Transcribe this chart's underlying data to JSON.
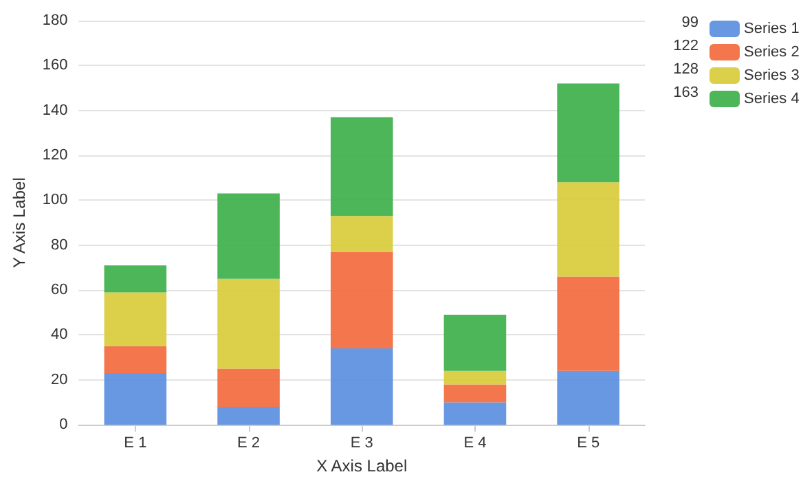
{
  "chart_data": {
    "type": "bar",
    "stacked": true,
    "xlabel": "X Axis Label",
    "ylabel": "Y Axis Label",
    "categories": [
      "E 1",
      "E 2",
      "E 3",
      "E 4",
      "E 5"
    ],
    "series": [
      {
        "name": "Series 1",
        "color": "#5b8fe0",
        "values": [
          23,
          8,
          34,
          10,
          24
        ]
      },
      {
        "name": "Series 2",
        "color": "#f26a3d",
        "values": [
          12,
          17,
          43,
          8,
          42
        ]
      },
      {
        "name": "Series 3",
        "color": "#d9cc3c",
        "values": [
          24,
          40,
          16,
          6,
          42
        ]
      },
      {
        "name": "Series 4",
        "color": "#3db04a",
        "values": [
          12,
          38,
          44,
          25,
          44
        ]
      }
    ],
    "annotations": [
      "99",
      "122",
      "128",
      "163"
    ],
    "ylim": [
      0,
      180
    ],
    "yticks": [
      0,
      20,
      40,
      60,
      80,
      100,
      120,
      140,
      160,
      180
    ],
    "grid": "y",
    "legend": "top right"
  }
}
